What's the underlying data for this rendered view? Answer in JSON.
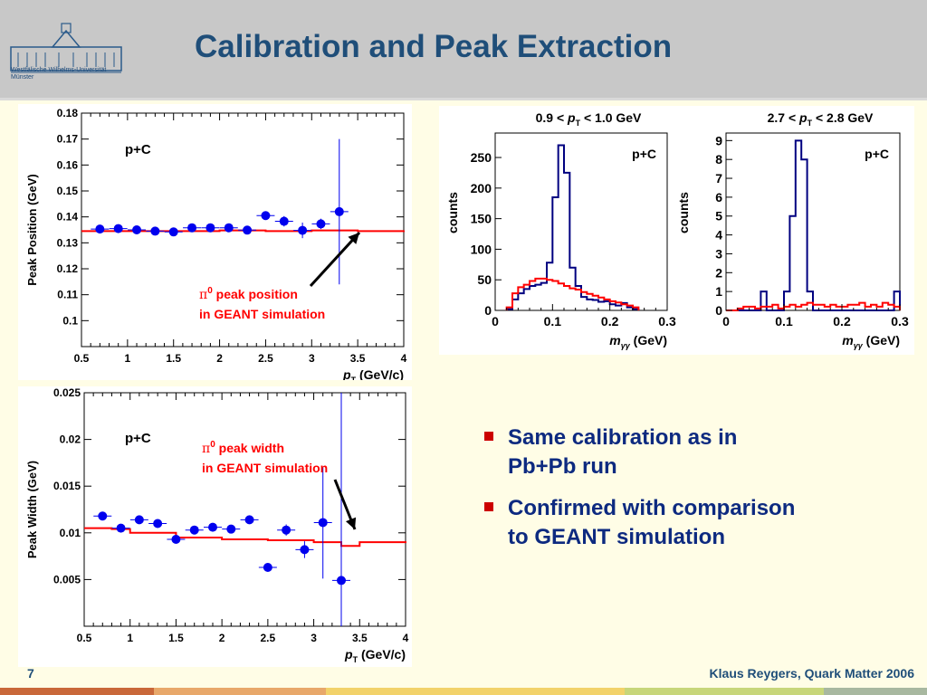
{
  "slide": {
    "title": "Calibration and Peak Extraction",
    "page_number": "7",
    "credit": "Klaus Reygers, Quark Matter 2006",
    "logo": {
      "line1": "Westfälische Wilhelms-Universität",
      "line2": "Münster"
    }
  },
  "bullets": [
    {
      "text_line1": "Same calibration as in",
      "text_line2": "Pb+Pb run"
    },
    {
      "text_line1": "Confirmed with comparison",
      "text_line2": "to GEANT simulation"
    }
  ],
  "colors": {
    "title": "#1f4e79",
    "bullet_text": "#0d2a80",
    "bullet_mark": "#cc0000",
    "data_points": "#0000ee",
    "simulation": "#ff0000",
    "histogram": "#000080"
  },
  "chart_data": [
    {
      "id": "peak-position",
      "type": "scatter",
      "ylabel": "Peak Position (GeV)",
      "xlabel_main": "p",
      "xlabel_sub": "T",
      "xlabel_unit": "(GeV/c)",
      "xlim": [
        0.5,
        4
      ],
      "ylim": [
        0.09,
        0.18
      ],
      "x_ticks": [
        "0.5",
        "1",
        "1.5",
        "2",
        "2.5",
        "3",
        "3.5",
        "4"
      ],
      "y_ticks": [
        "0.1",
        "0.11",
        "0.12",
        "0.13",
        "0.14",
        "0.15",
        "0.16",
        "0.17",
        "0.18"
      ],
      "label": "p+C",
      "annotation_line1": "π",
      "annotation_sup": "0",
      "annotation_rest1": " peak position",
      "annotation_line2": "in GEANT simulation",
      "series": [
        {
          "type": "points",
          "x": [
            0.7,
            0.9,
            1.1,
            1.3,
            1.5,
            1.7,
            1.9,
            2.1,
            2.3,
            2.5,
            2.7,
            2.9,
            3.1,
            3.3
          ],
          "y": [
            0.1353,
            0.1355,
            0.135,
            0.1345,
            0.1342,
            0.1358,
            0.1358,
            0.1358,
            0.1349,
            0.1405,
            0.1383,
            0.1348,
            0.1373,
            0.142
          ],
          "yerr": [
            0.001,
            0.001,
            0.001,
            0.001,
            0.001,
            0.001,
            0.001,
            0.001,
            0.001,
            0.001,
            0.002,
            0.003,
            0.002,
            0.028
          ]
        },
        {
          "type": "simulation",
          "x": [
            0.5,
            1.0,
            1.5,
            2.0,
            2.5,
            3.0,
            3.5,
            4.0
          ],
          "y": [
            0.1345,
            0.1345,
            0.1345,
            0.1348,
            0.1345,
            0.1348,
            0.1345,
            0.1348
          ]
        }
      ]
    },
    {
      "id": "peak-width",
      "type": "scatter",
      "ylabel": "Peak Width (GeV)",
      "xlabel_main": "p",
      "xlabel_sub": "T",
      "xlabel_unit": "(GeV/c)",
      "xlim": [
        0.5,
        4
      ],
      "ylim": [
        0,
        0.025
      ],
      "x_ticks": [
        "0.5",
        "1",
        "1.5",
        "2",
        "2.5",
        "3",
        "3.5",
        "4"
      ],
      "y_ticks": [
        "0.005",
        "0.01",
        "0.015",
        "0.02",
        "0.025"
      ],
      "label": "p+C",
      "annotation_line1": "π",
      "annotation_sup": "0",
      "annotation_rest1": " peak width",
      "annotation_line2": "in GEANT simulation",
      "series": [
        {
          "type": "points",
          "x": [
            0.7,
            0.9,
            1.1,
            1.3,
            1.5,
            1.7,
            1.9,
            2.1,
            2.3,
            2.5,
            2.7,
            2.9,
            3.1,
            3.3
          ],
          "y": [
            0.0118,
            0.0105,
            0.0114,
            0.011,
            0.0093,
            0.0103,
            0.0106,
            0.0104,
            0.0114,
            0.0063,
            0.0103,
            0.0082,
            0.0111,
            0.0049
          ],
          "yerr": [
            0.0003,
            0.0003,
            0.0003,
            0.0003,
            0.0003,
            0.0003,
            0.0003,
            0.0003,
            0.0003,
            0.0003,
            0.0006,
            0.0009,
            0.006,
            0.025
          ]
        },
        {
          "type": "simulation",
          "x": [
            0.5,
            0.8,
            1.0,
            1.5,
            2.0,
            2.5,
            3.0,
            3.3,
            3.5,
            4.0
          ],
          "y": [
            0.0105,
            0.0104,
            0.01,
            0.0095,
            0.0093,
            0.0092,
            0.009,
            0.0086,
            0.009,
            0.0089
          ]
        }
      ]
    },
    {
      "id": "hist-low-pt",
      "type": "bar",
      "title_pre": "0.9 < ",
      "title_p": "p",
      "title_sub": "T",
      "title_post": " < 1.0 GeV",
      "ylabel": "counts",
      "xlabel_main": "m",
      "xlabel_sub": "γγ",
      "xlabel_unit": " (GeV)",
      "xlim": [
        0,
        0.3
      ],
      "ylim": [
        0,
        290
      ],
      "x_ticks": [
        "0",
        "0.1",
        "0.2",
        "0.3"
      ],
      "y_ticks": [
        "0",
        "50",
        "100",
        "150",
        "200",
        "250"
      ],
      "label": "p+C",
      "series": [
        {
          "name": "data",
          "bin_width": 0.01,
          "bin_start": 0.02,
          "values": [
            2,
            18,
            28,
            35,
            40,
            42,
            45,
            78,
            185,
            270,
            225,
            70,
            40,
            22,
            18,
            17,
            14,
            15,
            10,
            8,
            12,
            5,
            2
          ]
        },
        {
          "name": "simulation",
          "bin_width": 0.01,
          "bin_start": 0.02,
          "values": [
            5,
            28,
            38,
            42,
            48,
            52,
            52,
            50,
            48,
            44,
            40,
            36,
            34,
            30,
            27,
            24,
            21,
            18,
            15,
            13,
            10,
            8,
            5
          ]
        }
      ]
    },
    {
      "id": "hist-high-pt",
      "type": "bar",
      "title_pre": "2.7 < ",
      "title_p": "p",
      "title_sub": "T",
      "title_post": " < 2.8 GeV",
      "ylabel": "counts",
      "xlabel_main": "m",
      "xlabel_sub": "γγ",
      "xlabel_unit": " (GeV)",
      "xlim": [
        0,
        0.3
      ],
      "ylim": [
        0,
        9.4
      ],
      "x_ticks": [
        "0",
        "0.1",
        "0.2",
        "0.3"
      ],
      "y_ticks": [
        "0",
        "1",
        "2",
        "3",
        "4",
        "5",
        "6",
        "7",
        "8",
        "9"
      ],
      "label": "p+C",
      "series": [
        {
          "name": "data",
          "bin_width": 0.01,
          "bin_start": 0.0,
          "values": [
            0,
            0,
            0,
            0,
            0,
            0,
            1,
            0,
            0,
            0,
            1,
            5,
            9,
            8,
            1,
            0,
            0,
            0,
            0,
            0,
            0,
            0,
            0,
            0,
            0,
            0,
            0,
            0,
            0,
            1
          ]
        },
        {
          "name": "simulation",
          "bin_width": 0.01,
          "bin_start": 0.0,
          "values": [
            0,
            0,
            0.1,
            0.2,
            0.2,
            0.1,
            0.2,
            0.2,
            0.3,
            0.1,
            0.2,
            0.3,
            0.2,
            0.3,
            0.4,
            0.3,
            0.3,
            0.2,
            0.3,
            0.2,
            0.2,
            0.3,
            0.3,
            0.4,
            0.2,
            0.3,
            0.2,
            0.4,
            0.3,
            0.2
          ]
        }
      ]
    }
  ]
}
